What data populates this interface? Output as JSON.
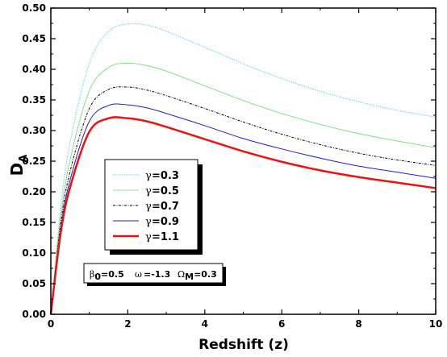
{
  "chart_data": {
    "type": "line",
    "xlabel": "Redshift (z)",
    "ylabel_main": "D",
    "ylabel_sub": "A",
    "xlim": [
      0,
      10
    ],
    "ylim": [
      0,
      0.5
    ],
    "xticks": [
      0,
      2,
      4,
      6,
      8,
      10
    ],
    "xtick_labels": [
      "0",
      "2",
      "4",
      "6",
      "8",
      "10"
    ],
    "yticks": [
      0,
      0.05,
      0.1,
      0.15,
      0.2,
      0.25,
      0.3,
      0.35,
      0.4,
      0.45,
      0.5
    ],
    "ytick_labels": [
      "0.00",
      "0.05",
      "0.10",
      "0.15",
      "0.20",
      "0.25",
      "0.30",
      "0.35",
      "0.40",
      "0.45",
      "0.50"
    ],
    "grid": false,
    "legend_position": "center-left",
    "series": [
      {
        "legend_symbol": "γ",
        "legend_value": "=0.3",
        "color": "#33ccff",
        "style": "dotted",
        "width": 1,
        "x": [
          0,
          0.25,
          0.5,
          1,
          1.5,
          2,
          2.5,
          3,
          4,
          5,
          6,
          7,
          8,
          9,
          10
        ],
        "y": [
          0,
          0.17,
          0.28,
          0.41,
          0.462,
          0.474,
          0.472,
          0.462,
          0.436,
          0.409,
          0.385,
          0.364,
          0.347,
          0.333,
          0.322
        ]
      },
      {
        "legend_symbol": "γ",
        "legend_value": "=0.5",
        "color": "#66dd66",
        "style": "solid",
        "width": 0.8,
        "x": [
          0,
          0.25,
          0.5,
          1,
          1.5,
          2,
          2.5,
          3,
          4,
          5,
          6,
          7,
          8,
          9,
          10
        ],
        "y": [
          0,
          0.155,
          0.252,
          0.365,
          0.403,
          0.41,
          0.406,
          0.397,
          0.373,
          0.349,
          0.328,
          0.31,
          0.295,
          0.283,
          0.272
        ]
      },
      {
        "legend_symbol": "γ",
        "legend_value": "=0.7",
        "color": "#000000",
        "style": "dashdot",
        "width": 1,
        "x": [
          0,
          0.25,
          0.5,
          1,
          1.5,
          2,
          2.5,
          3,
          4,
          5,
          6,
          7,
          8,
          9,
          10
        ],
        "y": [
          0,
          0.145,
          0.233,
          0.336,
          0.367,
          0.371,
          0.366,
          0.357,
          0.336,
          0.314,
          0.294,
          0.277,
          0.263,
          0.252,
          0.243
        ]
      },
      {
        "legend_symbol": "γ",
        "legend_value": "=0.9",
        "color": "#1f1fc8",
        "style": "solid",
        "width": 1,
        "x": [
          0,
          0.25,
          0.5,
          1,
          1.5,
          2,
          2.5,
          3,
          4,
          5,
          6,
          7,
          8,
          9,
          10
        ],
        "y": [
          0,
          0.137,
          0.219,
          0.315,
          0.341,
          0.342,
          0.337,
          0.328,
          0.308,
          0.287,
          0.27,
          0.255,
          0.242,
          0.232,
          0.222
        ]
      },
      {
        "legend_symbol": "γ",
        "legend_value": "=1.1",
        "color": "#ee1111",
        "style": "solid",
        "width": 2.5,
        "x": [
          0,
          0.25,
          0.5,
          1,
          1.5,
          2,
          2.5,
          3,
          4,
          5,
          6,
          7,
          8,
          9,
          10
        ],
        "y": [
          0,
          0.13,
          0.207,
          0.298,
          0.32,
          0.32,
          0.315,
          0.306,
          0.286,
          0.266,
          0.249,
          0.235,
          0.224,
          0.215,
          0.206
        ]
      }
    ],
    "annotation": {
      "beta_symbol": "β",
      "beta_sub": "0",
      "beta_value": "=0.5",
      "omega_symbol": "ω",
      "omega_value": "=-1.3",
      "Omega_symbol": "Ω",
      "Omega_sub": "M",
      "Omega_value": "=0.3"
    }
  }
}
